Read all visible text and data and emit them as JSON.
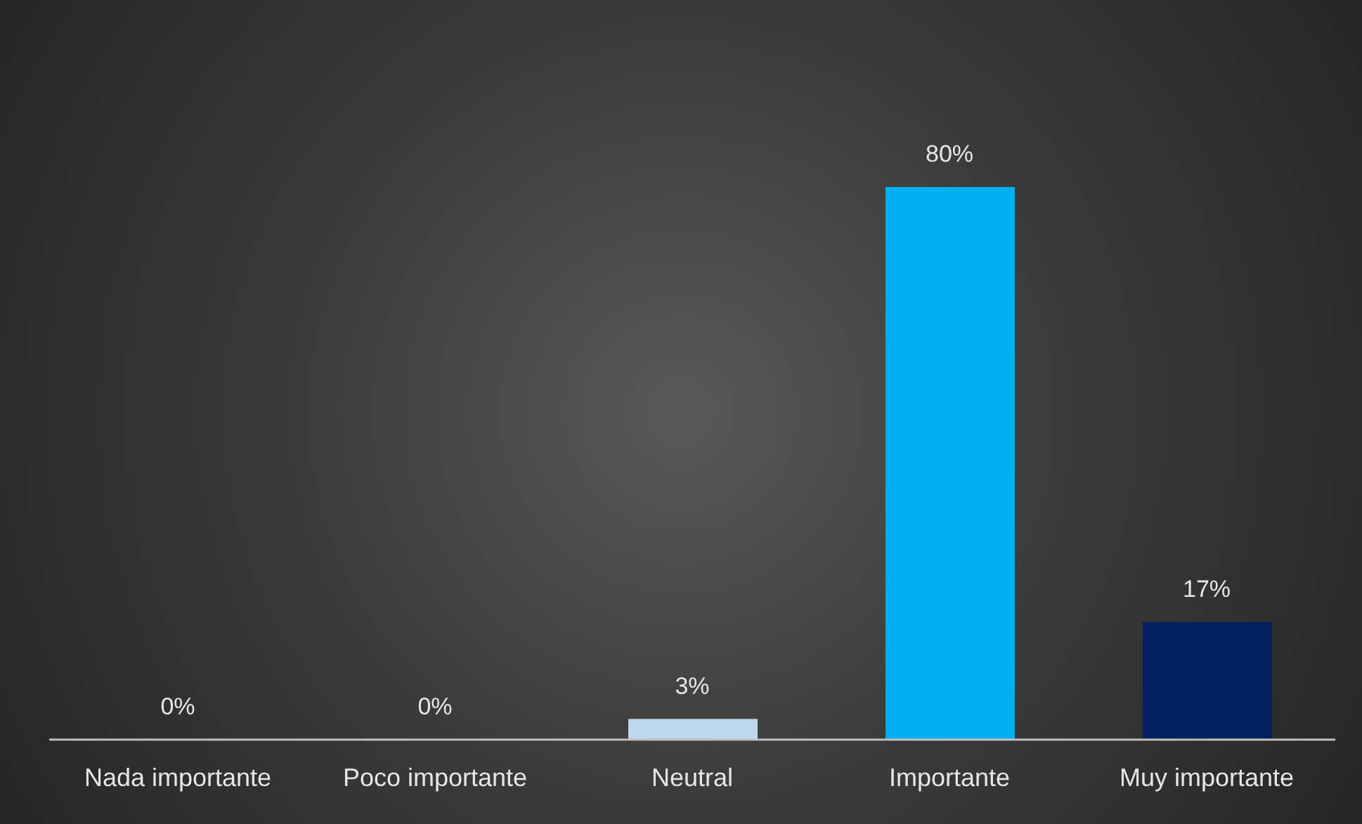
{
  "chart_data": {
    "type": "bar",
    "categories": [
      "Nada importante",
      "Poco importante",
      "Neutral",
      "Importante",
      "Muy importante"
    ],
    "values": [
      0,
      0,
      3,
      80,
      17
    ],
    "colors": [
      "#bdd7ee",
      "#bdd7ee",
      "#bdd7ee",
      "#00b0f0",
      "#002060"
    ],
    "value_labels": [
      "0%",
      "0%",
      "3%",
      "80%",
      "17%"
    ]
  }
}
